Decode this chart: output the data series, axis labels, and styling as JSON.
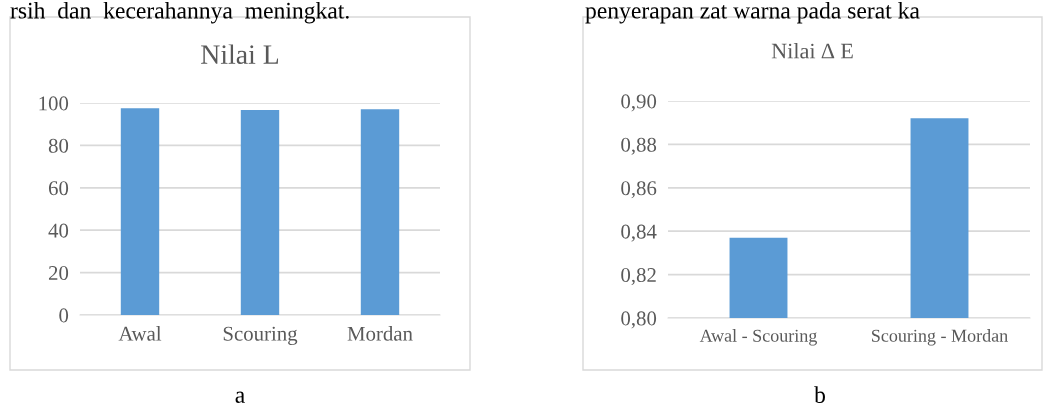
{
  "chart_data": [
    {
      "type": "bar",
      "title": "Nilai L",
      "categories": [
        "Awal",
        "Scouring",
        "Mordan"
      ],
      "values": [
        97.5,
        96.7,
        97.0
      ],
      "color": "#5b9bd5",
      "ylim": [
        0,
        100
      ],
      "yticks": [
        0,
        20,
        40,
        60,
        80,
        100
      ],
      "grid": "y",
      "annotations": [
        "rsih  dan  kecerahannya  meningkat.",
        "a"
      ]
    },
    {
      "type": "bar",
      "title": "Nilai ∆ E",
      "categories": [
        "Awal - Scouring",
        "Scouring - Mordan"
      ],
      "values": [
        0.837,
        0.892
      ],
      "color": "#5b9bd5",
      "ylim": [
        0.8,
        0.9
      ],
      "yticks": [
        {
          "value": 0.8,
          "label": "0,80"
        },
        {
          "value": 0.82,
          "label": "0,82"
        },
        {
          "value": 0.84,
          "label": "0,84"
        },
        {
          "value": 0.86,
          "label": "0,86"
        },
        {
          "value": 0.88,
          "label": "0,88"
        },
        {
          "value": 0.9,
          "label": "0,90"
        }
      ],
      "grid": "y",
      "annotations": [
        "penyerapan zat warna pada serat ka",
        "b"
      ]
    }
  ]
}
